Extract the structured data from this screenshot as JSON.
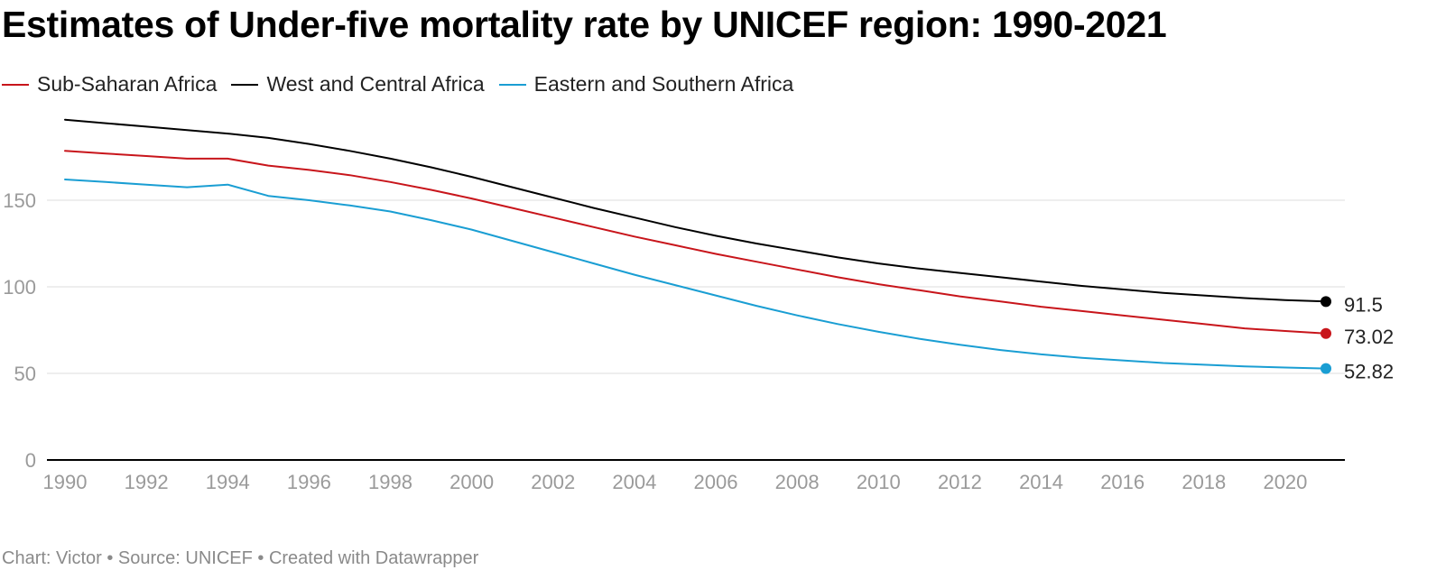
{
  "title": "Estimates of Under-five mortality rate by UNICEF region: 1990-2021",
  "footer": "Chart: Victor • Source: UNICEF • Created with Datawrapper",
  "colors": {
    "sub_saharan": "#c8151b",
    "west_central": "#000000",
    "eastern_southern": "#1a9ed3",
    "grid": "#dcdcdc",
    "tick_text": "#9a9a9a"
  },
  "chart_data": {
    "type": "line",
    "title": "Estimates of Under-five mortality rate by UNICEF region: 1990-2021",
    "xlabel": "",
    "ylabel": "",
    "xlim": [
      1990,
      2021
    ],
    "ylim": [
      0,
      200
    ],
    "yticks": [
      0,
      50,
      100,
      150
    ],
    "xticks": [
      1990,
      1992,
      1994,
      1996,
      1998,
      2000,
      2002,
      2004,
      2006,
      2008,
      2010,
      2012,
      2014,
      2016,
      2018,
      2020
    ],
    "grid": true,
    "legend_position": "top-left",
    "x": [
      1990,
      1991,
      1992,
      1993,
      1994,
      1995,
      1996,
      1997,
      1998,
      1999,
      2000,
      2001,
      2002,
      2003,
      2004,
      2005,
      2006,
      2007,
      2008,
      2009,
      2010,
      2011,
      2012,
      2013,
      2014,
      2015,
      2016,
      2017,
      2018,
      2019,
      2020,
      2021
    ],
    "series": [
      {
        "name": "Sub-Saharan Africa",
        "color": "#c8151b",
        "values": [
          178.5,
          177,
          175.5,
          174,
          174,
          170,
          167.5,
          164.5,
          160.5,
          156,
          151,
          145.5,
          140,
          134.5,
          129,
          124,
          119,
          114.5,
          110,
          105.5,
          101.5,
          98,
          94.5,
          91.5,
          88.5,
          86,
          83.5,
          81,
          78.5,
          76,
          74.5,
          73.02
        ]
      },
      {
        "name": "West and Central Africa",
        "color": "#000000",
        "values": [
          196.5,
          194.5,
          192.5,
          190.5,
          188.5,
          186,
          182.5,
          178.5,
          174,
          169,
          163.5,
          157.5,
          151.5,
          145.5,
          140,
          134.5,
          129.5,
          125,
          121,
          117,
          113.5,
          110.5,
          108,
          105.5,
          103,
          100.5,
          98.5,
          96.5,
          95,
          93.5,
          92.3,
          91.5
        ]
      },
      {
        "name": "Eastern and Southern Africa",
        "color": "#1a9ed3",
        "values": [
          162,
          160.5,
          159,
          157.5,
          159,
          152.5,
          150,
          147,
          143.5,
          138.5,
          133,
          126.5,
          120,
          113.5,
          107,
          101,
          95,
          89,
          83.5,
          78.5,
          74,
          70,
          66.5,
          63.5,
          61,
          59,
          57.5,
          56,
          55,
          54,
          53.4,
          52.82
        ]
      }
    ],
    "end_labels": [
      "91.5",
      "73.02",
      "52.82"
    ]
  }
}
